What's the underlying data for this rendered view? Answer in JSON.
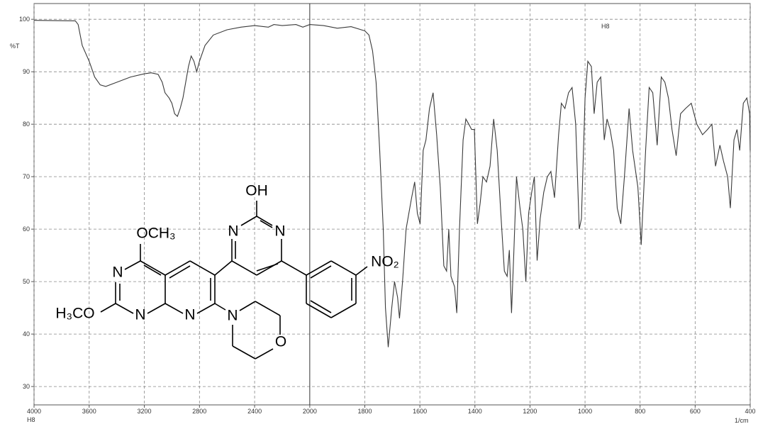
{
  "chart_data": {
    "type": "line",
    "ylabel": "%T",
    "xlabel": "1/cm",
    "annotations": [
      "H8",
      "H8"
    ],
    "x": [
      4000,
      3700,
      3680,
      3650,
      3600,
      3560,
      3520,
      3480,
      3400,
      3300,
      3200,
      3150,
      3100,
      3070,
      3050,
      3020,
      3000,
      2980,
      2960,
      2940,
      2920,
      2900,
      2880,
      2860,
      2840,
      2820,
      2800,
      2760,
      2700,
      2600,
      2500,
      2400,
      2300,
      2260,
      2200,
      2100,
      2050,
      2000,
      1950,
      1900,
      1850,
      1800,
      1785,
      1772,
      1759,
      1746,
      1733,
      1725,
      1715,
      1702,
      1692,
      1681,
      1674,
      1663,
      1650,
      1640,
      1630,
      1619,
      1609,
      1599,
      1588,
      1578,
      1565,
      1552,
      1539,
      1526,
      1513,
      1503,
      1495,
      1487,
      1474,
      1466,
      1456,
      1443,
      1433,
      1422,
      1412,
      1402,
      1391,
      1381,
      1371,
      1358,
      1345,
      1332,
      1319,
      1306,
      1293,
      1283,
      1275,
      1267,
      1259,
      1249,
      1236,
      1226,
      1215,
      1205,
      1194,
      1184,
      1174,
      1163,
      1150,
      1137,
      1124,
      1111,
      1096,
      1086,
      1073,
      1060,
      1047,
      1034,
      1021,
      1013,
      1000,
      990,
      977,
      967,
      956,
      943,
      930,
      920,
      909,
      896,
      883,
      870,
      857,
      840,
      827,
      808,
      796,
      780,
      767,
      754,
      738,
      723,
      710,
      697,
      684,
      669,
      653,
      635,
      614,
      594,
      573,
      555,
      539,
      526,
      510,
      497,
      482,
      472,
      459,
      448,
      438,
      425,
      412,
      402,
      400
    ],
    "values": [
      99.8,
      99.7,
      99,
      95,
      92,
      89,
      87.5,
      87.2,
      88,
      89,
      89.6,
      89.8,
      89.5,
      88,
      86,
      85,
      84,
      82,
      81.5,
      83,
      85,
      88,
      91,
      93,
      92,
      90,
      92,
      95,
      97,
      98,
      98.5,
      98.8,
      98.5,
      99,
      98.8,
      99,
      98.5,
      99,
      98.8,
      98.3,
      98.6,
      97.8,
      97,
      94,
      88,
      75,
      60,
      45,
      37.5,
      45,
      50,
      47,
      43,
      50,
      60,
      63,
      66,
      69,
      63,
      61,
      75,
      77,
      83,
      86,
      78,
      68,
      53,
      52,
      60,
      51,
      49,
      44,
      60,
      77,
      81,
      80,
      79,
      79,
      61,
      65,
      70,
      69,
      72,
      81,
      75,
      63,
      52,
      51,
      56,
      44,
      55,
      70,
      64,
      60,
      50,
      63,
      67,
      70,
      54,
      62,
      67,
      70,
      71,
      66,
      78,
      84,
      83,
      86,
      87,
      80,
      60,
      62,
      85,
      92,
      91,
      82,
      88,
      89,
      77,
      81,
      79,
      75,
      64,
      61,
      70,
      83,
      75,
      68,
      57,
      75,
      87,
      86,
      76,
      89,
      88,
      85,
      79,
      74,
      82,
      83,
      84,
      80,
      78,
      79,
      80,
      72,
      76,
      73,
      70,
      64,
      77,
      79,
      75,
      84,
      85,
      82,
      75
    ],
    "color": "#3a3a3a",
    "xlim": [
      4000,
      400
    ],
    "x_scale_break": 2000,
    "xticks": [
      4000,
      3600,
      3200,
      2800,
      2400,
      2000,
      1800,
      1600,
      1400,
      1200,
      1000,
      800,
      600,
      400
    ],
    "ylim": [
      26.5,
      103
    ],
    "yticks": [
      30,
      40,
      50,
      60,
      70,
      80,
      90,
      100
    ],
    "grid": true
  },
  "structure": {
    "atoms": [
      "OH",
      "N",
      "N",
      "OCH₃",
      "N",
      "H₃CO",
      "N",
      "N",
      "N",
      "O",
      "NO₂"
    ]
  }
}
